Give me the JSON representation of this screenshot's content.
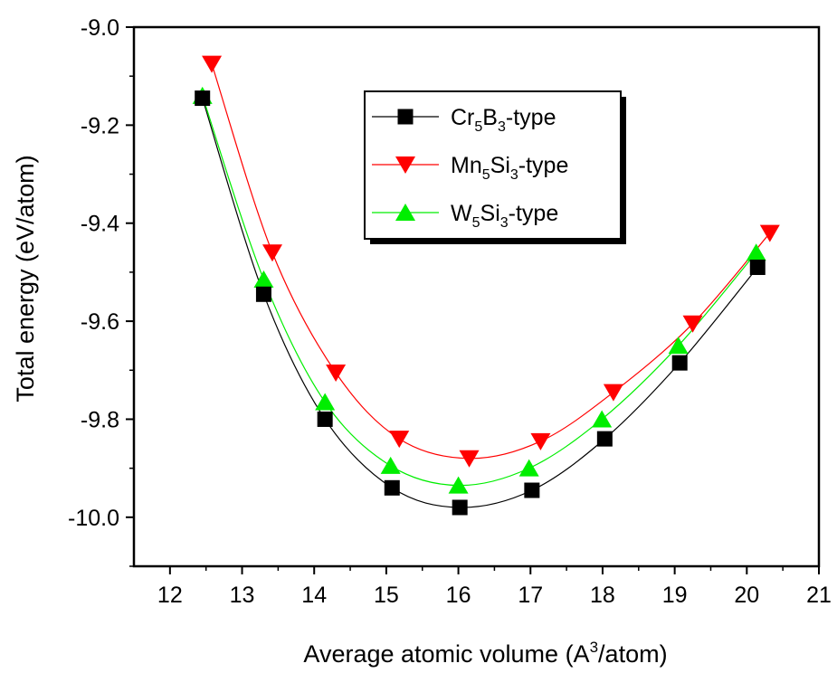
{
  "chart_data": {
    "type": "scatter",
    "xlabel": {
      "pre": "Average atomic volume (A",
      "sup": "3",
      "post": "/atom)"
    },
    "ylabel": "Total energy (eV/atom)",
    "xlim": [
      11.5,
      21
    ],
    "ylim": [
      -10.1,
      -9.0
    ],
    "x_ticks": [
      12,
      13,
      14,
      15,
      16,
      17,
      18,
      19,
      20,
      21
    ],
    "x_tick_labels": [
      "12",
      "13",
      "14",
      "15",
      "16",
      "17",
      "18",
      "19",
      "20",
      "21"
    ],
    "y_ticks": [
      -9.0,
      -9.2,
      -9.4,
      -9.6,
      -9.8,
      -10.0
    ],
    "y_tick_labels": [
      "-9.0",
      "-9.2",
      "-9.4",
      "-9.6",
      "-9.8",
      "-10.0"
    ],
    "grid": false,
    "legend_position": "top-right",
    "series": [
      {
        "name_parts": [
          [
            "Cr",
            "n"
          ],
          [
            "5",
            "sub"
          ],
          [
            "B",
            "n"
          ],
          [
            "3",
            "sub"
          ],
          [
            "-type",
            "n"
          ]
        ],
        "marker": "square",
        "color": "#000000",
        "x": [
          12.45,
          13.3,
          14.15,
          15.08,
          16.02,
          17.02,
          18.03,
          19.07,
          20.15
        ],
        "y": [
          -9.145,
          -9.545,
          -9.8,
          -9.94,
          -9.98,
          -9.945,
          -9.84,
          -9.685,
          -9.49
        ]
      },
      {
        "name_parts": [
          [
            "Mn",
            "n"
          ],
          [
            "5",
            "sub"
          ],
          [
            "Si",
            "n"
          ],
          [
            "3",
            "sub"
          ],
          [
            "-type",
            "n"
          ]
        ],
        "marker": "triangle-down",
        "color": "#ff0000",
        "x": [
          12.58,
          13.42,
          14.3,
          15.18,
          16.15,
          17.14,
          18.15,
          19.25,
          20.32
        ],
        "y": [
          -9.075,
          -9.46,
          -9.705,
          -9.84,
          -9.88,
          -9.845,
          -9.745,
          -9.605,
          -9.42
        ]
      },
      {
        "name_parts": [
          [
            "W",
            "n"
          ],
          [
            "5",
            "sub"
          ],
          [
            "Si",
            "n"
          ],
          [
            "3",
            "sub"
          ],
          [
            "-type",
            "n"
          ]
        ],
        "marker": "triangle-up",
        "color": "#00ee00",
        "x": [
          12.45,
          13.3,
          14.15,
          15.06,
          16.0,
          16.98,
          17.99,
          19.05,
          20.13
        ],
        "y": [
          -9.14,
          -9.515,
          -9.765,
          -9.895,
          -9.935,
          -9.9,
          -9.8,
          -9.65,
          -9.46
        ]
      }
    ]
  }
}
